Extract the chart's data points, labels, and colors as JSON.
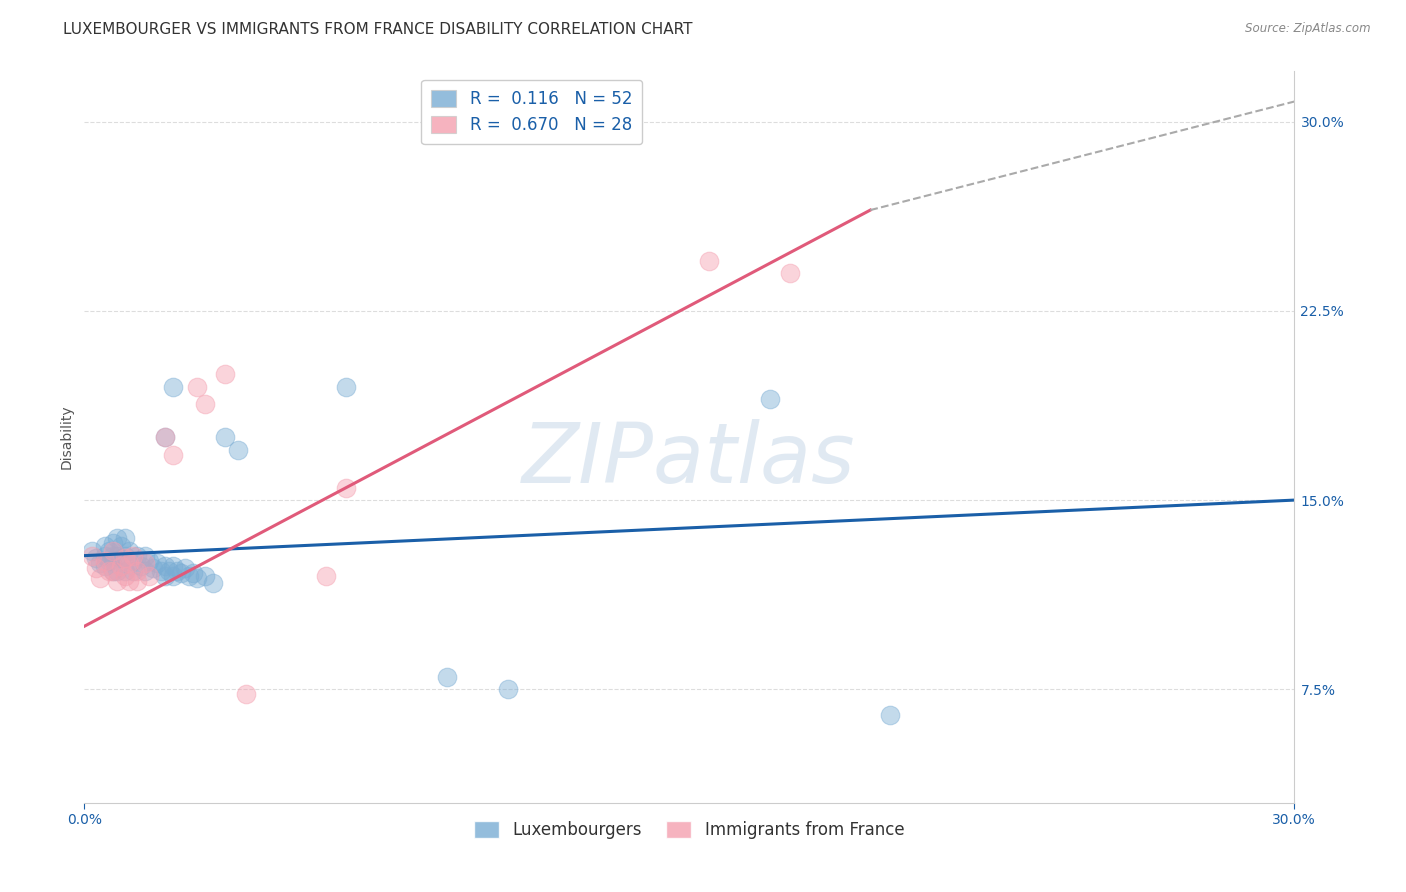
{
  "title": "LUXEMBOURGER VS IMMIGRANTS FROM FRANCE DISABILITY CORRELATION CHART",
  "source": "Source: ZipAtlas.com",
  "ylabel": "Disability",
  "xlim": [
    0.0,
    0.3
  ],
  "ylim": [
    0.03,
    0.32
  ],
  "y_ticks_right": [
    0.075,
    0.15,
    0.225,
    0.3
  ],
  "y_tick_labels_right": [
    "7.5%",
    "15.0%",
    "22.5%",
    "30.0%"
  ],
  "blue_R": "0.116",
  "blue_N": "52",
  "pink_R": "0.670",
  "pink_N": "28",
  "legend_label_blue": "Luxembourgers",
  "legend_label_pink": "Immigrants from France",
  "blue_color": "#7aadd4",
  "pink_color": "#f4a0b0",
  "blue_line_color": "#1a5fa8",
  "pink_line_color": "#e05a7a",
  "dashed_line_color": "#aaaaaa",
  "watermark": "ZIPatlas",
  "blue_points": [
    [
      0.002,
      0.13
    ],
    [
      0.003,
      0.127
    ],
    [
      0.004,
      0.125
    ],
    [
      0.005,
      0.132
    ],
    [
      0.005,
      0.128
    ],
    [
      0.005,
      0.124
    ],
    [
      0.006,
      0.13
    ],
    [
      0.006,
      0.126
    ],
    [
      0.007,
      0.133
    ],
    [
      0.007,
      0.128
    ],
    [
      0.007,
      0.122
    ],
    [
      0.008,
      0.135
    ],
    [
      0.008,
      0.128
    ],
    [
      0.008,
      0.122
    ],
    [
      0.009,
      0.132
    ],
    [
      0.009,
      0.127
    ],
    [
      0.01,
      0.135
    ],
    [
      0.01,
      0.128
    ],
    [
      0.01,
      0.122
    ],
    [
      0.011,
      0.13
    ],
    [
      0.012,
      0.126
    ],
    [
      0.012,
      0.122
    ],
    [
      0.013,
      0.128
    ],
    [
      0.014,
      0.124
    ],
    [
      0.015,
      0.128
    ],
    [
      0.015,
      0.122
    ],
    [
      0.016,
      0.126
    ],
    [
      0.017,
      0.123
    ],
    [
      0.018,
      0.125
    ],
    [
      0.019,
      0.122
    ],
    [
      0.02,
      0.124
    ],
    [
      0.02,
      0.12
    ],
    [
      0.021,
      0.122
    ],
    [
      0.022,
      0.124
    ],
    [
      0.022,
      0.12
    ],
    [
      0.023,
      0.122
    ],
    [
      0.024,
      0.121
    ],
    [
      0.025,
      0.123
    ],
    [
      0.026,
      0.12
    ],
    [
      0.027,
      0.121
    ],
    [
      0.028,
      0.119
    ],
    [
      0.03,
      0.12
    ],
    [
      0.032,
      0.117
    ],
    [
      0.02,
      0.175
    ],
    [
      0.022,
      0.195
    ],
    [
      0.035,
      0.175
    ],
    [
      0.038,
      0.17
    ],
    [
      0.065,
      0.195
    ],
    [
      0.17,
      0.19
    ],
    [
      0.09,
      0.08
    ],
    [
      0.105,
      0.075
    ],
    [
      0.2,
      0.065
    ]
  ],
  "pink_points": [
    [
      0.002,
      0.128
    ],
    [
      0.003,
      0.123
    ],
    [
      0.004,
      0.119
    ],
    [
      0.005,
      0.126
    ],
    [
      0.006,
      0.122
    ],
    [
      0.007,
      0.13
    ],
    [
      0.007,
      0.122
    ],
    [
      0.008,
      0.118
    ],
    [
      0.009,
      0.124
    ],
    [
      0.01,
      0.127
    ],
    [
      0.01,
      0.12
    ],
    [
      0.011,
      0.125
    ],
    [
      0.011,
      0.118
    ],
    [
      0.012,
      0.128
    ],
    [
      0.013,
      0.122
    ],
    [
      0.013,
      0.118
    ],
    [
      0.015,
      0.125
    ],
    [
      0.016,
      0.12
    ],
    [
      0.02,
      0.175
    ],
    [
      0.022,
      0.168
    ],
    [
      0.028,
      0.195
    ],
    [
      0.03,
      0.188
    ],
    [
      0.035,
      0.2
    ],
    [
      0.06,
      0.12
    ],
    [
      0.065,
      0.155
    ],
    [
      0.155,
      0.245
    ],
    [
      0.175,
      0.24
    ],
    [
      0.04,
      0.073
    ]
  ],
  "blue_line": {
    "x0": 0.0,
    "y0": 0.128,
    "x1": 0.3,
    "y1": 0.15
  },
  "pink_line": {
    "x0": 0.0,
    "y0": 0.1,
    "x1": 0.195,
    "y1": 0.265
  },
  "dashed_line": {
    "x0": 0.195,
    "y0": 0.265,
    "x1": 0.305,
    "y1": 0.31
  },
  "grid_color": "#dddddd",
  "background_color": "#ffffff",
  "title_fontsize": 11,
  "axis_label_fontsize": 10,
  "tick_fontsize": 10,
  "legend_fontsize": 12
}
